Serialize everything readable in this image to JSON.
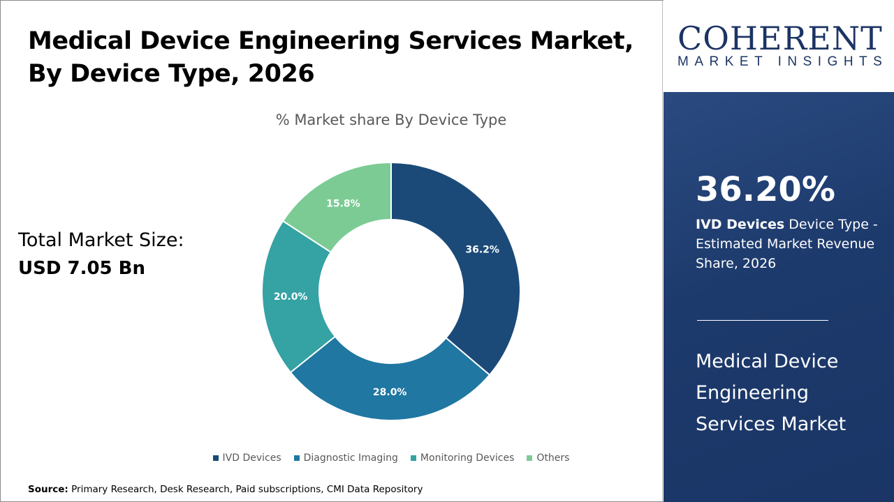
{
  "title": "Medical Device Engineering Services Market, By Device Type, 2026",
  "total_market": {
    "label": "Total Market Size:",
    "value": "USD 7.05 Bn"
  },
  "source": {
    "label": "Source:",
    "text": "Primary Research, Desk Research, Paid subscriptions, CMI Data Repository"
  },
  "logo": {
    "name": "COHERENT",
    "tagline": "MARKET INSIGHTS"
  },
  "highlight": {
    "value": "36.20%",
    "segment": "IVD Devices",
    "desc": "Device Type - Estimated Market Revenue Share, 2026",
    "market_name": "Medical Device Engineering Services Market"
  },
  "chart_data": {
    "type": "pie",
    "variant": "donut",
    "title": "% Market share By Device Type",
    "categories": [
      "IVD Devices",
      "Diagnostic Imaging",
      "Monitoring Devices",
      "Others"
    ],
    "values": [
      36.2,
      28.0,
      20.0,
      15.8
    ],
    "labels": [
      "36.2%",
      "28.0%",
      "20.0%",
      "15.8%"
    ],
    "colors": [
      "#1b4a78",
      "#1f77a2",
      "#35a2a4",
      "#7ccb95"
    ],
    "legend": "bottom"
  }
}
